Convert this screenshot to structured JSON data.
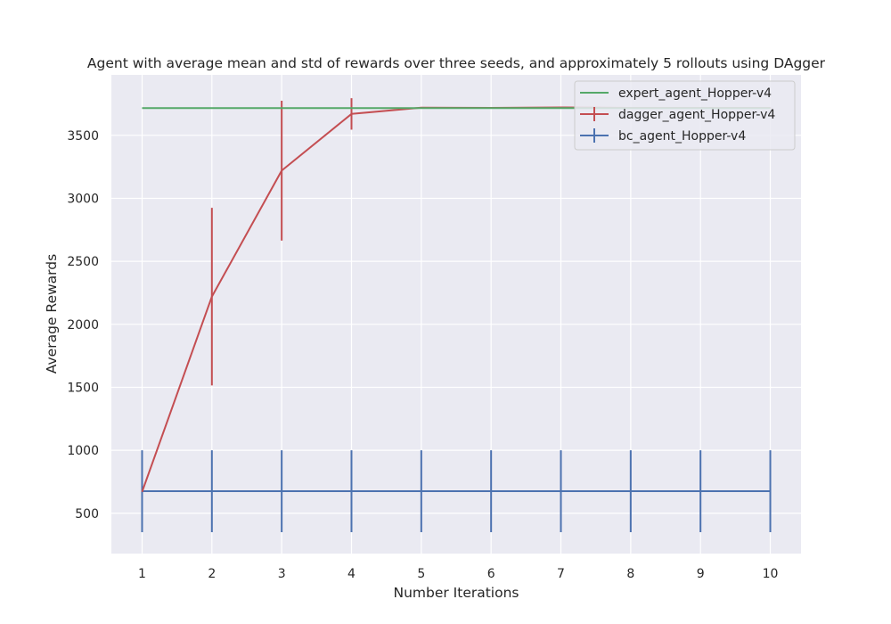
{
  "chart_data": {
    "type": "line",
    "title": "Agent with average mean and std of rewards over three seeds, and approximately 5 rollouts using DAgger",
    "xlabel": "Number Iterations",
    "ylabel": "Average Rewards",
    "xlim": [
      0.56,
      10.44
    ],
    "ylim": [
      180,
      3980
    ],
    "xticks": [
      1,
      2,
      3,
      4,
      5,
      6,
      7,
      8,
      9,
      10
    ],
    "yticks": [
      500,
      1000,
      1500,
      2000,
      2500,
      3000,
      3500
    ],
    "grid": true,
    "legend_position": "top-right",
    "x": [
      1,
      2,
      3,
      4,
      5,
      6,
      7,
      8,
      9,
      10
    ],
    "series": [
      {
        "name": "expert_agent_Hopper-v4",
        "color": "#55a868",
        "values": [
          3716,
          3716,
          3716,
          3716,
          3716,
          3716,
          3716,
          3716,
          3716,
          3716
        ],
        "std": null
      },
      {
        "name": "dagger_agent_Hopper-v4",
        "color": "#c44e52",
        "values": [
          670,
          2220,
          3220,
          3670,
          3720,
          3718,
          3722,
          3718,
          3718,
          3718
        ],
        "std": [
          0,
          705,
          555,
          125,
          5,
          3,
          4,
          3,
          3,
          3
        ]
      },
      {
        "name": "bc_agent_Hopper-v4",
        "color": "#4c72b0",
        "values": [
          675,
          675,
          675,
          675,
          675,
          675,
          675,
          675,
          675,
          675
        ],
        "std": [
          325,
          325,
          325,
          325,
          325,
          325,
          325,
          325,
          325,
          325
        ]
      }
    ]
  }
}
